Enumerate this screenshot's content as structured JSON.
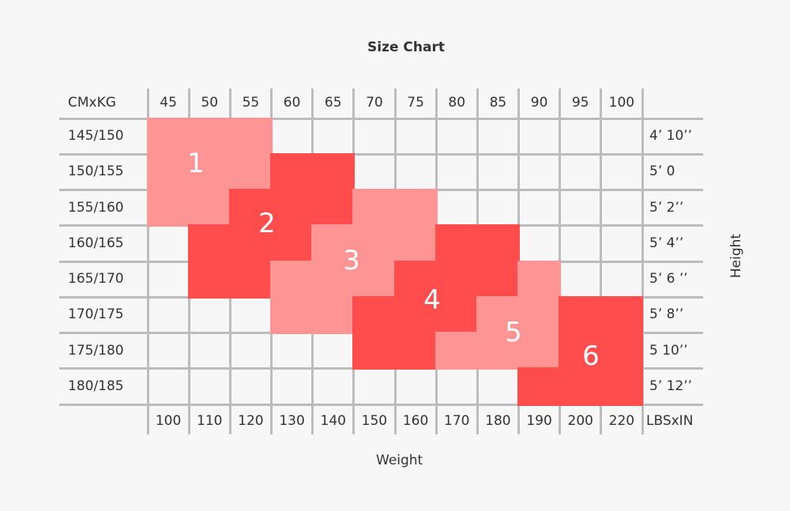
{
  "chart_data": {
    "type": "table",
    "title": "Size Chart",
    "corner_label": "CMxKG",
    "corner_label_bottom": "LBSxIN",
    "xlabel": "Weight",
    "ylabel": "Height",
    "weight_kg": [
      "45",
      "50",
      "55",
      "60",
      "65",
      "70",
      "75",
      "80",
      "85",
      "90",
      "95",
      "100"
    ],
    "weight_lbs": [
      "100",
      "110",
      "120",
      "130",
      "140",
      "150",
      "160",
      "170",
      "180",
      "190",
      "200",
      "220"
    ],
    "height_cm": [
      "145/150",
      "150/155",
      "155/160",
      "160/165",
      "165/170",
      "170/175",
      "175/180",
      "180/185"
    ],
    "height_ft_in": [
      "4’ 10’’",
      "5’ 0",
      "5’ 2’’",
      "5’ 4’’",
      "5’ 6 ’’",
      "5’ 8’’",
      "5 10’’",
      "5’ 12’’"
    ],
    "sizes": [
      "1",
      "2",
      "3",
      "4",
      "5",
      "6"
    ],
    "size_grid": [
      [
        1,
        1,
        1,
        0,
        0,
        0,
        0,
        0,
        0,
        0,
        0,
        0
      ],
      [
        1,
        1,
        1,
        2,
        2,
        0,
        0,
        0,
        0,
        0,
        0,
        0
      ],
      [
        1,
        1,
        2,
        2,
        2,
        3,
        3,
        0,
        0,
        0,
        0,
        0
      ],
      [
        0,
        2,
        2,
        2,
        3,
        3,
        3,
        4,
        4,
        0,
        0,
        0
      ],
      [
        0,
        2,
        2,
        3,
        3,
        3,
        4,
        4,
        4,
        5,
        0,
        0
      ],
      [
        0,
        0,
        0,
        3,
        3,
        4,
        4,
        4,
        5,
        5,
        6,
        6
      ],
      [
        0,
        0,
        0,
        0,
        0,
        4,
        4,
        5,
        5,
        5,
        6,
        6
      ],
      [
        0,
        0,
        0,
        0,
        0,
        0,
        0,
        0,
        0,
        6,
        6,
        6
      ]
    ],
    "colors": {
      "odd_size": "#ff9494",
      "even_size": "#ff4d4d",
      "grid": "#bcbcbc",
      "background": "#f7f7f7"
    }
  }
}
